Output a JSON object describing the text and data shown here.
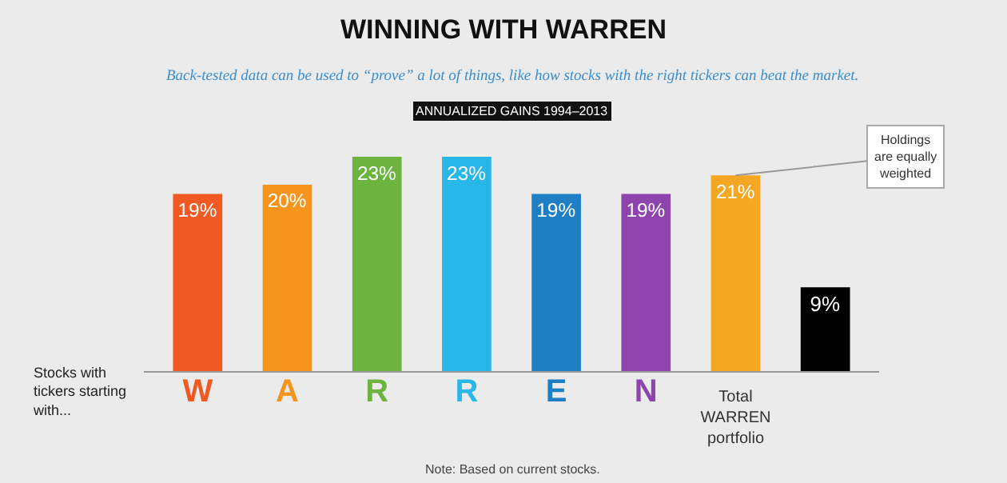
{
  "chart_data": {
    "type": "bar",
    "title": "WINNING WITH WARREN",
    "subtitle": "Back-tested data can be used to “prove” a lot of things, like how stocks with the right tickers can beat the market.",
    "categories": [
      "W",
      "A",
      "R",
      "R",
      "E",
      "N",
      "Total WARREN portfolio",
      null
    ],
    "values": [
      19,
      20,
      23,
      23,
      19,
      19,
      21,
      9
    ],
    "value_labels": [
      "19%",
      "20%",
      "23%",
      "23%",
      "19%",
      "19%",
      "21%",
      "9%"
    ],
    "colors": [
      "#f05a22",
      "#f7941d",
      "#6cb33f",
      "#29b6e8",
      "#1f7fc4",
      "#8e44ad",
      "#f5a623",
      "#000000"
    ],
    "annotations": [
      "ANNUALIZED GAINS 1994–2013",
      "Stocks with tickers starting with...",
      {
        "text": "Holdings are equally weighted",
        "x": "Total WARREN portfolio",
        "y": 21
      },
      "Note: Based on current stocks."
    ]
  }
}
